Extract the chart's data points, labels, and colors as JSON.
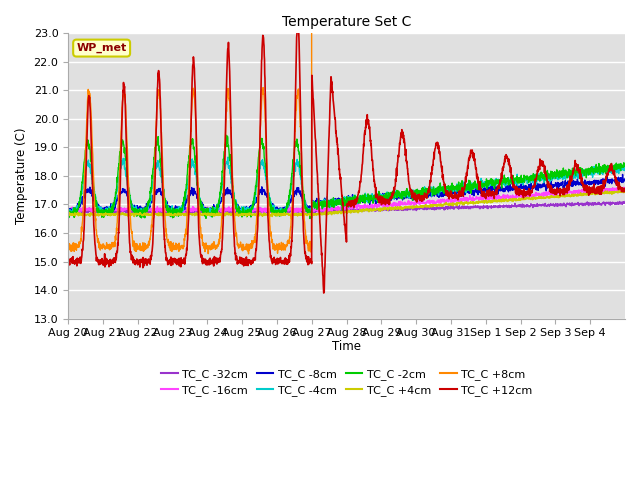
{
  "title": "Temperature Set C",
  "xlabel": "Time",
  "ylabel": "Temperature (C)",
  "ylim": [
    13.0,
    23.0
  ],
  "yticks": [
    13.0,
    14.0,
    15.0,
    16.0,
    17.0,
    18.0,
    19.0,
    20.0,
    21.0,
    22.0,
    23.0
  ],
  "xtick_labels": [
    "Aug 20",
    "Aug 21",
    "Aug 22",
    "Aug 23",
    "Aug 24",
    "Aug 25",
    "Aug 26",
    "Aug 27",
    "Aug 28",
    "Aug 29",
    "Aug 30",
    "Aug 31",
    "Sep 1",
    "Sep 2",
    "Sep 3",
    "Sep 4"
  ],
  "fig_bg": "#ffffff",
  "plot_bg": "#e0e0e0",
  "grid_color": "#ffffff",
  "annotation_text": "WP_met",
  "annotation_fg": "#8b0000",
  "annotation_bg": "#ffffcc",
  "annotation_border": "#cccc00",
  "series": [
    {
      "label": "TC_C -32cm",
      "color": "#9933cc"
    },
    {
      "label": "TC_C -16cm",
      "color": "#ff44ff"
    },
    {
      "label": "TC_C -8cm",
      "color": "#0000cc"
    },
    {
      "label": "TC_C -4cm",
      "color": "#00cccc"
    },
    {
      "label": "TC_C -2cm",
      "color": "#00cc00"
    },
    {
      "label": "TC_C +4cm",
      "color": "#cccc00"
    },
    {
      "label": "TC_C +8cm",
      "color": "#ff8800"
    },
    {
      "label": "TC_C +12cm",
      "color": "#cc0000"
    }
  ]
}
